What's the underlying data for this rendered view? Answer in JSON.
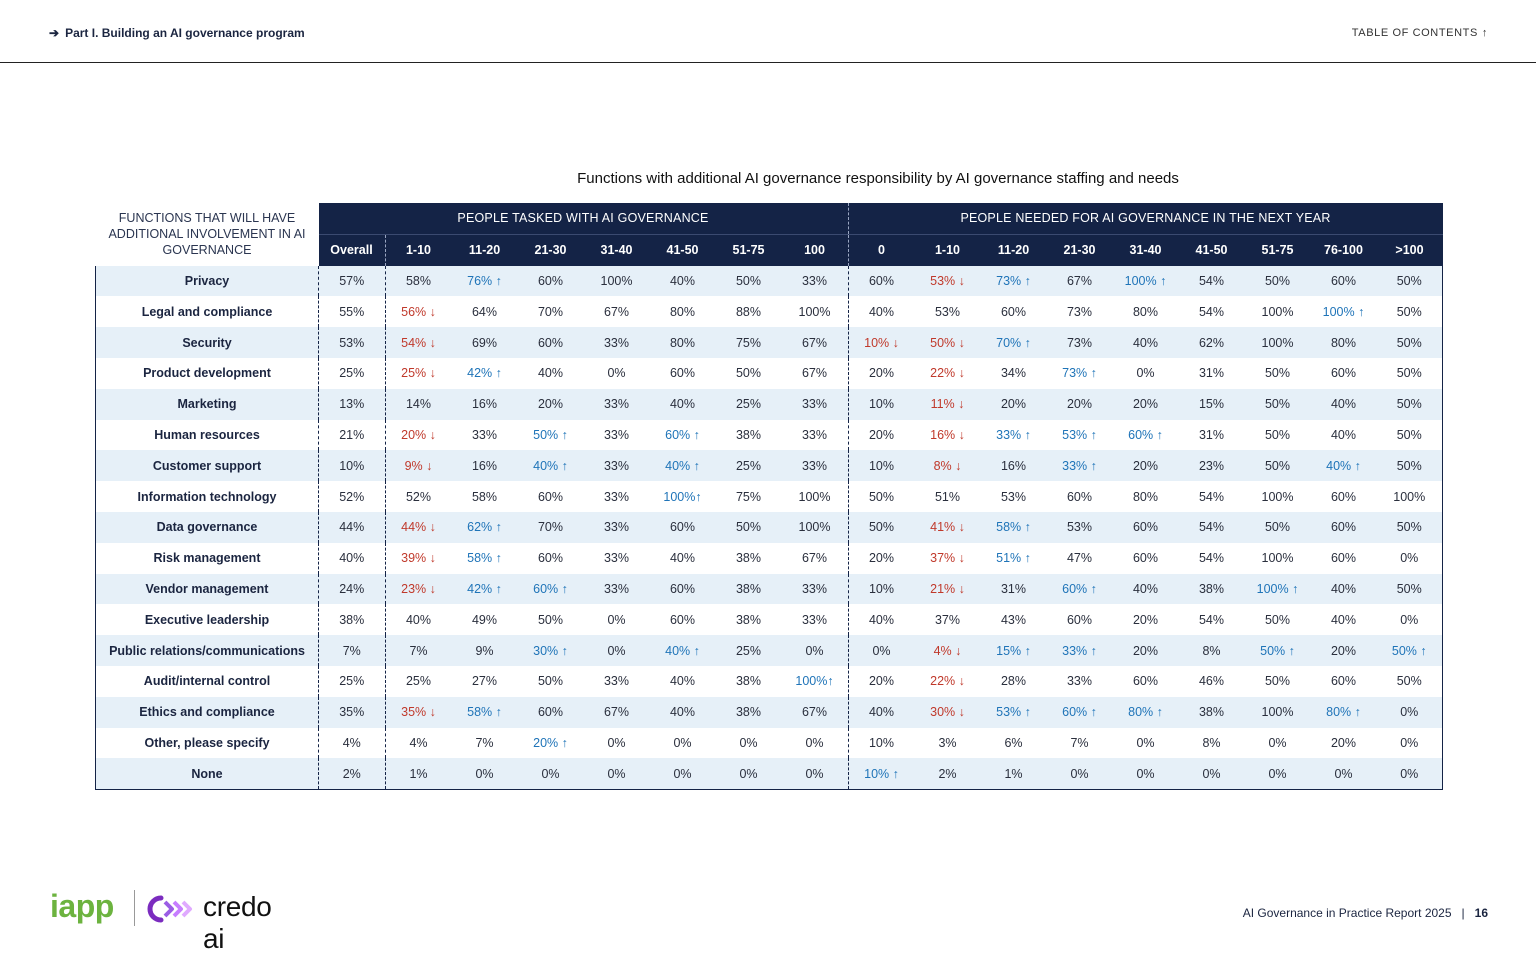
{
  "header": {
    "breadcrumb": "Part I. Building an AI governance program",
    "toc": "TABLE OF CONTENTS"
  },
  "title": "Functions with additional AI governance responsibility by AI governance staffing and needs",
  "table": {
    "corner": "FUNCTIONS THAT WILL HAVE ADDITIONAL INVOLVEMENT IN AI GOVERNANCE",
    "group1": "PEOPLE TASKED WITH AI GOVERNANCE",
    "group2": "PEOPLE NEEDED FOR AI GOVERNANCE IN THE NEXT YEAR",
    "columns": [
      "Overall",
      "1-10",
      "11-20",
      "21-30",
      "31-40",
      "41-50",
      "51-75",
      "100",
      "0",
      "1-10",
      "11-20",
      "21-30",
      "31-40",
      "41-50",
      "51-75",
      "76-100",
      ">100"
    ],
    "rows": [
      {
        "label": "Privacy",
        "cells": [
          "57%",
          "58%",
          "76% ↑",
          "60%",
          "100%",
          "40%",
          "50%",
          "33%",
          "60%",
          "53% ↓",
          "73% ↑",
          "67%",
          "100% ↑",
          "54%",
          "50%",
          "60%",
          "50%"
        ]
      },
      {
        "label": "Legal and compliance",
        "cells": [
          "55%",
          "56% ↓",
          "64%",
          "70%",
          "67%",
          "80%",
          "88%",
          "100%",
          "40%",
          "53%",
          "60%",
          "73%",
          "80%",
          "54%",
          "100%",
          "100% ↑",
          "50%"
        ]
      },
      {
        "label": "Security",
        "cells": [
          "53%",
          "54% ↓",
          "69%",
          "60%",
          "33%",
          "80%",
          "75%",
          "67%",
          "10% ↓",
          "50% ↓",
          "70% ↑",
          "73%",
          "40%",
          "62%",
          "100%",
          "80%",
          "50%"
        ]
      },
      {
        "label": "Product development",
        "cells": [
          "25%",
          "25% ↓",
          "42% ↑",
          "40%",
          "0%",
          "60%",
          "50%",
          "67%",
          "20%",
          "22% ↓",
          "34%",
          "73% ↑",
          "0%",
          "31%",
          "50%",
          "60%",
          "50%"
        ]
      },
      {
        "label": "Marketing",
        "cells": [
          "13%",
          "14%",
          "16%",
          "20%",
          "33%",
          "40%",
          "25%",
          "33%",
          "10%",
          "11% ↓",
          "20%",
          "20%",
          "20%",
          "15%",
          "50%",
          "40%",
          "50%"
        ]
      },
      {
        "label": "Human resources",
        "cells": [
          "21%",
          "20% ↓",
          "33%",
          "50% ↑",
          "33%",
          "60% ↑",
          "38%",
          "33%",
          "20%",
          "16% ↓",
          "33% ↑",
          "53% ↑",
          "60% ↑",
          "31%",
          "50%",
          "40%",
          "50%"
        ]
      },
      {
        "label": "Customer support",
        "cells": [
          "10%",
          "9% ↓",
          "16%",
          "40% ↑",
          "33%",
          "40% ↑",
          "25%",
          "33%",
          "10%",
          "8% ↓",
          "16%",
          "33% ↑",
          "20%",
          "23%",
          "50%",
          "40% ↑",
          "50%"
        ]
      },
      {
        "label": "Information technology",
        "cells": [
          "52%",
          "52%",
          "58%",
          "60%",
          "33%",
          "100%↑",
          "75%",
          "100%",
          "50%",
          "51%",
          "53%",
          "60%",
          "80%",
          "54%",
          "100%",
          "60%",
          "100%"
        ]
      },
      {
        "label": "Data governance",
        "cells": [
          "44%",
          "44% ↓",
          "62% ↑",
          "70%",
          "33%",
          "60%",
          "50%",
          "100%",
          "50%",
          "41% ↓",
          "58% ↑",
          "53%",
          "60%",
          "54%",
          "50%",
          "60%",
          "50%"
        ]
      },
      {
        "label": "Risk management",
        "cells": [
          "40%",
          "39% ↓",
          "58% ↑",
          "60%",
          "33%",
          "40%",
          "38%",
          "67%",
          "20%",
          "37% ↓",
          "51% ↑",
          "47%",
          "60%",
          "54%",
          "100%",
          "60%",
          "0%"
        ]
      },
      {
        "label": "Vendor management",
        "cells": [
          "24%",
          "23% ↓",
          "42% ↑",
          "60% ↑",
          "33%",
          "60%",
          "38%",
          "33%",
          "10%",
          "21% ↓",
          "31%",
          "60% ↑",
          "40%",
          "38%",
          "100% ↑",
          "40%",
          "50%"
        ]
      },
      {
        "label": "Executive leadership",
        "cells": [
          "38%",
          "40%",
          "49%",
          "50%",
          "0%",
          "60%",
          "38%",
          "33%",
          "40%",
          "37%",
          "43%",
          "60%",
          "20%",
          "54%",
          "50%",
          "40%",
          "0%"
        ]
      },
      {
        "label": "Public relations/communications",
        "cells": [
          "7%",
          "7%",
          "9%",
          "30% ↑",
          "0%",
          "40% ↑",
          "25%",
          "0%",
          "0%",
          "4% ↓",
          "15% ↑",
          "33% ↑",
          "20%",
          "8%",
          "50% ↑",
          "20%",
          "50% ↑"
        ]
      },
      {
        "label": "Audit/internal control",
        "cells": [
          "25%",
          "25%",
          "27%",
          "50%",
          "33%",
          "40%",
          "38%",
          "100%↑",
          "20%",
          "22% ↓",
          "28%",
          "33%",
          "60%",
          "46%",
          "50%",
          "60%",
          "50%"
        ]
      },
      {
        "label": "Ethics and compliance",
        "cells": [
          "35%",
          "35% ↓",
          "58% ↑",
          "60%",
          "67%",
          "40%",
          "38%",
          "67%",
          "40%",
          "30% ↓",
          "53% ↑",
          "60% ↑",
          "80% ↑",
          "38%",
          "100%",
          "80% ↑",
          "0%"
        ]
      },
      {
        "label": "Other, please specify",
        "cells": [
          "4%",
          "4%",
          "7%",
          "20% ↑",
          "0%",
          "0%",
          "0%",
          "0%",
          "10%",
          "3%",
          "6%",
          "7%",
          "0%",
          "8%",
          "0%",
          "20%",
          "0%"
        ]
      },
      {
        "label": "None",
        "cells": [
          "2%",
          "1%",
          "0%",
          "0%",
          "0%",
          "0%",
          "0%",
          "0%",
          "10% ↑",
          "2%",
          "1%",
          "0%",
          "0%",
          "0%",
          "0%",
          "0%",
          "0%"
        ]
      }
    ]
  },
  "footer": {
    "logo_iapp": "iapp",
    "logo_credo": "credo ai",
    "report": "AI Governance in Practice Report 2025",
    "separator": "|",
    "page": "16"
  },
  "colors": {
    "navy": "#142346",
    "stripe": "#e6f0f8",
    "up": "#1f74b8",
    "down": "#c0392b",
    "iapp_green": "#6cb33f",
    "credo_purple": "#7b2cbf"
  }
}
